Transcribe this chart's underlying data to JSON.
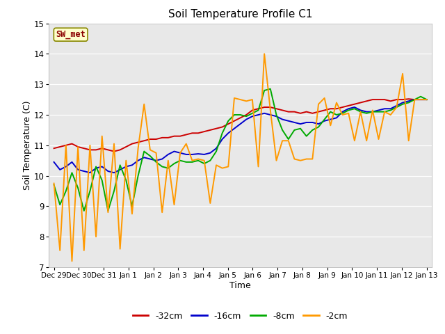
{
  "title": "Soil Temperature Profile C1",
  "xlabel": "Time",
  "ylabel": "Soil Temperature (C)",
  "ylim": [
    7.0,
    15.0
  ],
  "yticks": [
    7.0,
    8.0,
    9.0,
    10.0,
    11.0,
    12.0,
    13.0,
    14.0,
    15.0
  ],
  "plot_bg_color": "#e8e8e8",
  "fig_bg_color": "#ffffff",
  "series_label_box": "SW_met",
  "xtick_labels": [
    "Dec 29",
    "Dec 30",
    "Dec 31",
    "Jan 1",
    "Jan 2",
    "Jan 3",
    "Jan 4",
    "Jan 5",
    "Jan 6",
    "Jan 7",
    "Jan 8",
    "Jan 9",
    "Jan 10",
    "Jan 11",
    "Jan 12",
    "Jan 13"
  ],
  "series": [
    {
      "label": "-32cm",
      "color": "#cc0000",
      "lw": 1.4,
      "y": [
        10.9,
        10.95,
        11.0,
        11.05,
        10.95,
        10.9,
        10.85,
        10.85,
        10.9,
        10.85,
        10.8,
        10.85,
        10.95,
        11.05,
        11.1,
        11.15,
        11.2,
        11.2,
        11.25,
        11.25,
        11.3,
        11.3,
        11.35,
        11.4,
        11.4,
        11.45,
        11.5,
        11.55,
        11.6,
        11.7,
        11.8,
        11.9,
        12.0,
        12.15,
        12.2,
        12.25,
        12.25,
        12.2,
        12.15,
        12.1,
        12.1,
        12.05,
        12.1,
        12.05,
        12.1,
        12.15,
        12.2,
        12.2,
        12.25,
        12.3,
        12.35,
        12.4,
        12.45,
        12.5,
        12.5,
        12.5,
        12.45,
        12.5,
        12.5,
        12.52,
        12.5,
        12.5,
        12.5
      ]
    },
    {
      "label": "-16cm",
      "color": "#0000cc",
      "lw": 1.4,
      "y": [
        10.45,
        10.2,
        10.3,
        10.45,
        10.2,
        10.15,
        10.1,
        10.25,
        10.3,
        10.15,
        10.1,
        10.2,
        10.3,
        10.35,
        10.5,
        10.6,
        10.55,
        10.5,
        10.55,
        10.7,
        10.8,
        10.75,
        10.7,
        10.7,
        10.72,
        10.7,
        10.75,
        10.9,
        11.2,
        11.4,
        11.55,
        11.7,
        11.85,
        11.95,
        12.0,
        12.05,
        12.0,
        11.95,
        11.85,
        11.8,
        11.75,
        11.7,
        11.75,
        11.75,
        11.7,
        11.8,
        11.85,
        11.9,
        12.1,
        12.2,
        12.25,
        12.15,
        12.1,
        12.1,
        12.15,
        12.2,
        12.2,
        12.3,
        12.4,
        12.45,
        12.5,
        12.5,
        12.5
      ]
    },
    {
      "label": "-8cm",
      "color": "#00aa00",
      "lw": 1.4,
      "y": [
        9.7,
        9.05,
        9.5,
        10.1,
        9.6,
        8.85,
        9.5,
        10.3,
        9.85,
        8.85,
        9.5,
        10.35,
        9.85,
        9.0,
        10.0,
        10.8,
        10.65,
        10.45,
        10.3,
        10.25,
        10.4,
        10.5,
        10.45,
        10.45,
        10.5,
        10.4,
        10.5,
        10.8,
        11.4,
        11.8,
        12.0,
        12.0,
        11.95,
        12.05,
        12.15,
        12.8,
        12.85,
        12.0,
        11.5,
        11.2,
        11.5,
        11.55,
        11.3,
        11.5,
        11.6,
        11.85,
        12.1,
        12.0,
        12.05,
        12.15,
        12.2,
        12.1,
        12.05,
        12.1,
        12.1,
        12.1,
        12.15,
        12.25,
        12.35,
        12.4,
        12.5,
        12.6,
        12.5
      ]
    },
    {
      "label": "-2cm",
      "color": "#ff9900",
      "lw": 1.4,
      "y": [
        9.75,
        7.55,
        11.0,
        7.2,
        10.95,
        7.55,
        11.0,
        8.0,
        11.3,
        8.8,
        11.05,
        7.6,
        10.5,
        8.75,
        10.9,
        12.35,
        10.85,
        10.75,
        8.8,
        10.5,
        9.05,
        10.75,
        11.05,
        10.5,
        10.55,
        10.5,
        9.1,
        10.35,
        10.25,
        10.3,
        12.55,
        12.5,
        12.45,
        12.5,
        10.3,
        14.0,
        12.15,
        10.5,
        11.15,
        11.15,
        10.55,
        10.5,
        10.55,
        10.55,
        12.35,
        12.55,
        11.65,
        12.4,
        12.0,
        12.05,
        11.15,
        12.1,
        11.15,
        12.15,
        11.2,
        12.1,
        12.0,
        12.25,
        13.35,
        11.15,
        12.5,
        12.5,
        12.5
      ]
    }
  ]
}
